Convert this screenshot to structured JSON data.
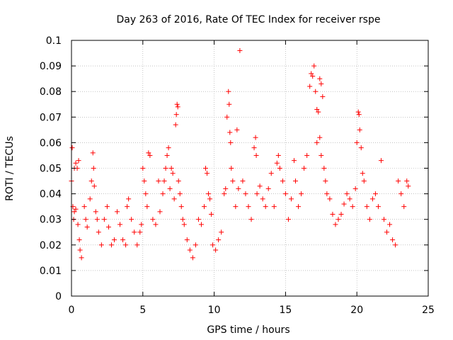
{
  "chart_data": {
    "type": "scatter",
    "title": "Day 263 of 2016, Rate Of TEC Index for receiver rspe",
    "xlabel": "GPS time / hours",
    "ylabel": "ROTI / TECUs",
    "xlim": [
      0,
      25
    ],
    "ylim": [
      0,
      0.1
    ],
    "x_ticks": [
      0,
      5,
      10,
      15,
      20,
      25
    ],
    "x_tick_labels": [
      "0",
      "5",
      "10",
      "15",
      "20",
      "25"
    ],
    "y_ticks": [
      0,
      0.01,
      0.02,
      0.03,
      0.04,
      0.05,
      0.06,
      0.07,
      0.08,
      0.09,
      0.1
    ],
    "y_tick_labels": [
      "0",
      "0.01",
      "0.02",
      "0.03",
      "0.04",
      "0.05",
      "0.06",
      "0.07",
      "0.08",
      "0.09",
      "0.1"
    ],
    "grid": true,
    "marker": "+",
    "marker_color": "#ff0000",
    "series": [
      {
        "name": "ROTI",
        "points": [
          [
            0.0,
            0.045
          ],
          [
            0.05,
            0.058
          ],
          [
            0.1,
            0.035
          ],
          [
            0.15,
            0.03
          ],
          [
            0.2,
            0.05
          ],
          [
            0.3,
            0.052
          ],
          [
            0.4,
            0.05
          ],
          [
            0.5,
            0.053
          ],
          [
            0.2,
            0.033
          ],
          [
            0.3,
            0.034
          ],
          [
            0.45,
            0.028
          ],
          [
            0.55,
            0.022
          ],
          [
            0.6,
            0.018
          ],
          [
            0.7,
            0.015
          ],
          [
            0.9,
            0.035
          ],
          [
            1.0,
            0.03
          ],
          [
            1.1,
            0.027
          ],
          [
            1.3,
            0.038
          ],
          [
            1.4,
            0.045
          ],
          [
            1.5,
            0.056
          ],
          [
            1.55,
            0.05
          ],
          [
            1.6,
            0.043
          ],
          [
            1.7,
            0.033
          ],
          [
            1.8,
            0.03
          ],
          [
            1.9,
            0.025
          ],
          [
            2.1,
            0.02
          ],
          [
            2.3,
            0.03
          ],
          [
            2.5,
            0.035
          ],
          [
            2.6,
            0.027
          ],
          [
            2.8,
            0.02
          ],
          [
            3.0,
            0.022
          ],
          [
            3.2,
            0.033
          ],
          [
            3.4,
            0.028
          ],
          [
            3.6,
            0.022
          ],
          [
            3.8,
            0.02
          ],
          [
            3.9,
            0.035
          ],
          [
            4.0,
            0.038
          ],
          [
            4.2,
            0.03
          ],
          [
            4.4,
            0.025
          ],
          [
            4.6,
            0.02
          ],
          [
            4.8,
            0.025
          ],
          [
            4.9,
            0.028
          ],
          [
            5.0,
            0.05
          ],
          [
            5.1,
            0.045
          ],
          [
            5.2,
            0.04
          ],
          [
            5.3,
            0.035
          ],
          [
            5.4,
            0.056
          ],
          [
            5.5,
            0.055
          ],
          [
            5.7,
            0.03
          ],
          [
            5.9,
            0.028
          ],
          [
            6.1,
            0.045
          ],
          [
            6.2,
            0.033
          ],
          [
            6.4,
            0.04
          ],
          [
            6.5,
            0.045
          ],
          [
            6.6,
            0.05
          ],
          [
            6.7,
            0.055
          ],
          [
            6.8,
            0.058
          ],
          [
            6.9,
            0.042
          ],
          [
            7.0,
            0.05
          ],
          [
            7.1,
            0.048
          ],
          [
            7.2,
            0.038
          ],
          [
            7.3,
            0.067
          ],
          [
            7.35,
            0.071
          ],
          [
            7.4,
            0.075
          ],
          [
            7.45,
            0.074
          ],
          [
            7.5,
            0.045
          ],
          [
            7.6,
            0.04
          ],
          [
            7.7,
            0.035
          ],
          [
            7.8,
            0.03
          ],
          [
            7.9,
            0.028
          ],
          [
            8.1,
            0.022
          ],
          [
            8.3,
            0.018
          ],
          [
            8.5,
            0.015
          ],
          [
            8.7,
            0.02
          ],
          [
            8.9,
            0.03
          ],
          [
            9.1,
            0.028
          ],
          [
            9.3,
            0.035
          ],
          [
            9.4,
            0.05
          ],
          [
            9.5,
            0.048
          ],
          [
            9.6,
            0.04
          ],
          [
            9.7,
            0.038
          ],
          [
            9.8,
            0.032
          ],
          [
            9.9,
            0.02
          ],
          [
            10.1,
            0.018
          ],
          [
            10.3,
            0.022
          ],
          [
            10.5,
            0.025
          ],
          [
            10.7,
            0.04
          ],
          [
            10.8,
            0.042
          ],
          [
            10.9,
            0.07
          ],
          [
            11.0,
            0.08
          ],
          [
            11.05,
            0.075
          ],
          [
            11.1,
            0.064
          ],
          [
            11.15,
            0.06
          ],
          [
            11.2,
            0.05
          ],
          [
            11.3,
            0.045
          ],
          [
            11.5,
            0.035
          ],
          [
            11.6,
            0.065
          ],
          [
            11.7,
            0.042
          ],
          [
            11.8,
            0.096
          ],
          [
            12.0,
            0.045
          ],
          [
            12.2,
            0.04
          ],
          [
            12.4,
            0.035
          ],
          [
            12.6,
            0.03
          ],
          [
            12.8,
            0.058
          ],
          [
            12.9,
            0.062
          ],
          [
            12.95,
            0.055
          ],
          [
            13.0,
            0.04
          ],
          [
            13.2,
            0.043
          ],
          [
            13.4,
            0.038
          ],
          [
            13.6,
            0.035
          ],
          [
            13.8,
            0.042
          ],
          [
            14.0,
            0.048
          ],
          [
            14.2,
            0.035
          ],
          [
            14.4,
            0.052
          ],
          [
            14.5,
            0.055
          ],
          [
            14.6,
            0.05
          ],
          [
            14.8,
            0.045
          ],
          [
            15.0,
            0.04
          ],
          [
            15.2,
            0.03
          ],
          [
            15.4,
            0.038
          ],
          [
            15.6,
            0.053
          ],
          [
            15.7,
            0.045
          ],
          [
            15.9,
            0.035
          ],
          [
            16.1,
            0.04
          ],
          [
            16.3,
            0.05
          ],
          [
            16.5,
            0.055
          ],
          [
            16.7,
            0.082
          ],
          [
            16.8,
            0.087
          ],
          [
            16.9,
            0.086
          ],
          [
            17.0,
            0.09
          ],
          [
            17.1,
            0.08
          ],
          [
            17.2,
            0.073
          ],
          [
            17.3,
            0.072
          ],
          [
            17.4,
            0.085
          ],
          [
            17.5,
            0.083
          ],
          [
            17.6,
            0.078
          ],
          [
            17.2,
            0.06
          ],
          [
            17.4,
            0.062
          ],
          [
            17.5,
            0.055
          ],
          [
            17.7,
            0.05
          ],
          [
            17.8,
            0.045
          ],
          [
            17.9,
            0.04
          ],
          [
            18.1,
            0.038
          ],
          [
            18.3,
            0.032
          ],
          [
            18.5,
            0.028
          ],
          [
            18.7,
            0.03
          ],
          [
            18.9,
            0.032
          ],
          [
            19.1,
            0.036
          ],
          [
            19.3,
            0.04
          ],
          [
            19.5,
            0.038
          ],
          [
            19.7,
            0.035
          ],
          [
            19.9,
            0.042
          ],
          [
            20.0,
            0.06
          ],
          [
            20.1,
            0.072
          ],
          [
            20.15,
            0.071
          ],
          [
            20.2,
            0.065
          ],
          [
            20.3,
            0.058
          ],
          [
            20.4,
            0.048
          ],
          [
            20.5,
            0.045
          ],
          [
            20.7,
            0.035
          ],
          [
            20.9,
            0.03
          ],
          [
            21.1,
            0.038
          ],
          [
            21.3,
            0.04
          ],
          [
            21.5,
            0.035
          ],
          [
            21.7,
            0.053
          ],
          [
            21.9,
            0.03
          ],
          [
            22.1,
            0.025
          ],
          [
            22.3,
            0.028
          ],
          [
            22.5,
            0.022
          ],
          [
            22.7,
            0.02
          ],
          [
            22.9,
            0.045
          ],
          [
            23.1,
            0.04
          ],
          [
            23.3,
            0.035
          ],
          [
            23.5,
            0.045
          ],
          [
            23.6,
            0.043
          ]
        ]
      }
    ]
  }
}
